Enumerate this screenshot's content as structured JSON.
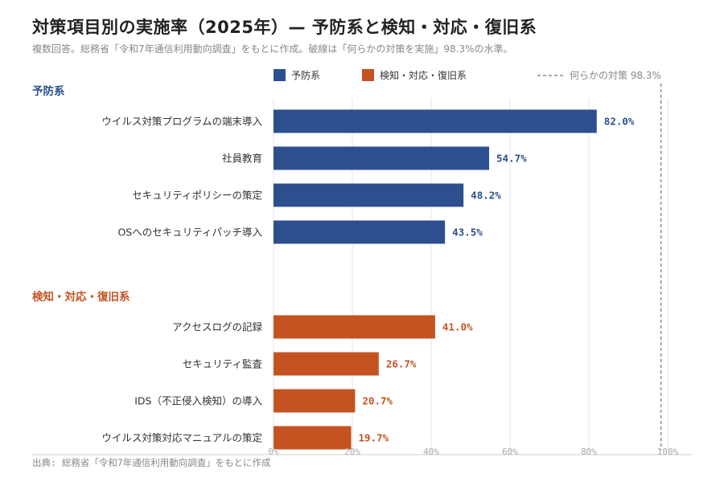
{
  "title": "対策項目別の実施率（2025年）— 予防系と検知・対応・復旧系",
  "subtitle": "複数回答。総務省「令和7年通信利用動向調査」をもとに作成。破線は「何らかの対策を実施」98.3%の水準。",
  "source": "出典: 総務省「令和7年通信利用動向調査」をもとに作成",
  "colors": {
    "prevention": "#2c4f8f",
    "detection": "#c55322",
    "reference": "#777777",
    "grid": "#e4e4e4",
    "axis": "#cccccc"
  },
  "legend": {
    "prevention_label": "予防系",
    "detection_label": "検知・対応・復旧系",
    "reference_label": "何らかの対策 98.3%"
  },
  "chart_data": {
    "type": "bar",
    "orientation": "horizontal",
    "xlim": [
      0,
      100
    ],
    "ticks": [
      "0%",
      "20%",
      "40%",
      "60%",
      "80%",
      "100%"
    ],
    "tick_values": [
      0,
      20,
      40,
      60,
      80,
      100
    ],
    "reference_line": 98.3,
    "grid": true,
    "legend_position": "top",
    "groups": [
      {
        "name": "予防系",
        "color_key": "prevention",
        "items": [
          {
            "label": "ウイルス対策プログラムの端末導入",
            "value": 82.0,
            "value_label": "82.0%"
          },
          {
            "label": "社員教育",
            "value": 54.7,
            "value_label": "54.7%"
          },
          {
            "label": "セキュリティポリシーの策定",
            "value": 48.2,
            "value_label": "48.2%"
          },
          {
            "label": "OSへのセキュリティパッチ導入",
            "value": 43.5,
            "value_label": "43.5%"
          }
        ]
      },
      {
        "name": "検知・対応・復旧系",
        "color_key": "detection",
        "items": [
          {
            "label": "アクセスログの記録",
            "value": 41.0,
            "value_label": "41.0%"
          },
          {
            "label": "セキュリティ監査",
            "value": 26.7,
            "value_label": "26.7%"
          },
          {
            "label": "IDS（不正侵入検知）の導入",
            "value": 20.7,
            "value_label": "20.7%"
          },
          {
            "label": "ウイルス対策対応マニュアルの策定",
            "value": 19.7,
            "value_label": "19.7%"
          }
        ]
      }
    ]
  }
}
